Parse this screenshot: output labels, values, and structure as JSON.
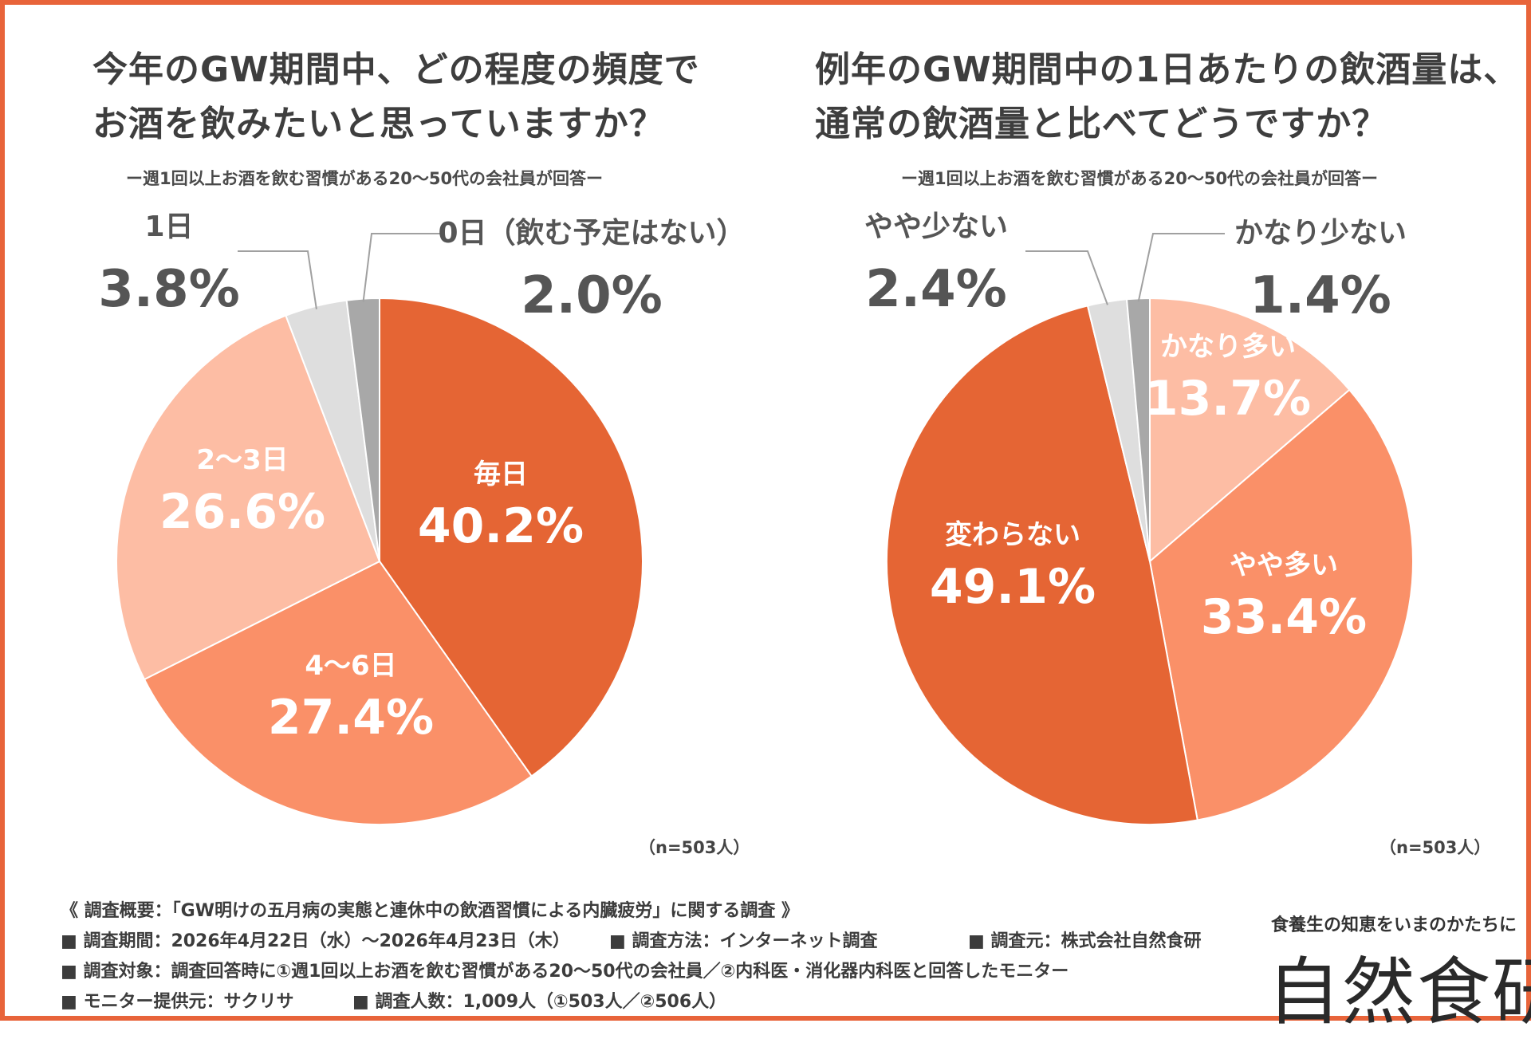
{
  "charts": [
    {
      "title_lines": [
        "今年のGW期間中、どの程度の頻度で",
        "お酒を飲みたいと思っていますか？"
      ],
      "subtitle": "ー週1回以上お酒を飲む習慣がある20～50代の会社員が回答ー",
      "n_label": "（n=503人）"
    },
    {
      "title_lines": [
        "例年のGW期間中の1日あたりの飲酒量は、",
        "通常の飲酒量と比べてどうですか？"
      ],
      "subtitle": "ー週1回以上お酒を飲む習慣がある20～50代の会社員が回答ー",
      "n_label": "（n=503人）"
    }
  ],
  "chart_data": [
    {
      "type": "pie",
      "title": "今年のGW期間中、どの程度の頻度でお酒を飲みたいと思っていますか？",
      "subtitle": "ー週1回以上お酒を飲む習慣がある20～50代の会社員が回答ー",
      "categories": [
        "毎日",
        "4～6日",
        "2～3日",
        "1日",
        "0日（飲む予定はない）"
      ],
      "values": [
        40.2,
        27.4,
        26.6,
        3.8,
        2.0
      ],
      "value_labels": [
        "40.2%",
        "27.4%",
        "26.6%",
        "3.8%",
        "2.0%"
      ],
      "colors": [
        "#e56534",
        "#fa9068",
        "#fdbda4",
        "#dedede",
        "#a8a8a8"
      ],
      "label_colors": [
        "#ffffff",
        "#ffffff",
        "#ffffff",
        "#555555",
        "#555555"
      ],
      "outside_labels": [
        false,
        false,
        false,
        true,
        true
      ],
      "start": "12 o'clock",
      "direction": "clockwise",
      "n": "（n=503人）"
    },
    {
      "type": "pie",
      "title": "例年のGW期間中の1日あたりの飲酒量は、通常の飲酒量と比べてどうですか？",
      "subtitle": "ー週1回以上お酒を飲む習慣がある20～50代の会社員が回答ー",
      "categories": [
        "かなり多い",
        "やや多い",
        "変わらない",
        "やや少ない",
        "かなり少ない"
      ],
      "values": [
        13.7,
        33.4,
        49.1,
        2.4,
        1.4
      ],
      "value_labels": [
        "13.7%",
        "33.4%",
        "49.1%",
        "2.4%",
        "1.4%"
      ],
      "colors": [
        "#fdbda4",
        "#fa9068",
        "#e56534",
        "#dedede",
        "#a8a8a8"
      ],
      "label_colors": [
        "#ffffff",
        "#ffffff",
        "#ffffff",
        "#555555",
        "#555555"
      ],
      "outside_labels": [
        false,
        false,
        false,
        true,
        true
      ],
      "start": "12 o'clock",
      "direction": "clockwise",
      "n": "（n=503人）"
    }
  ],
  "survey": {
    "overview": "《 調査概要：「GW明けの五月病の実態と連休中の飲酒習慣による内臓疲労」に関する調査 》",
    "period": "■ 調査期間：2026年4月22日（水）～2026年4月23日（木）",
    "method": "■ 調査方法：インターネット調査",
    "organizer": "■ 調査元：株式会社自然食研",
    "target": "■ 調査対象：調査回答時に①週1回以上お酒を飲む習慣がある20～50代の会社員／②内科医・消化器内科医と回答したモニター",
    "provider": "■ モニター提供元：サクリサ",
    "count": "■ 調査人数：1,009人（①503人／②506人）"
  },
  "brand": {
    "tagline": "食養生の知恵をいまのかたちに",
    "logo": "自然食研"
  }
}
